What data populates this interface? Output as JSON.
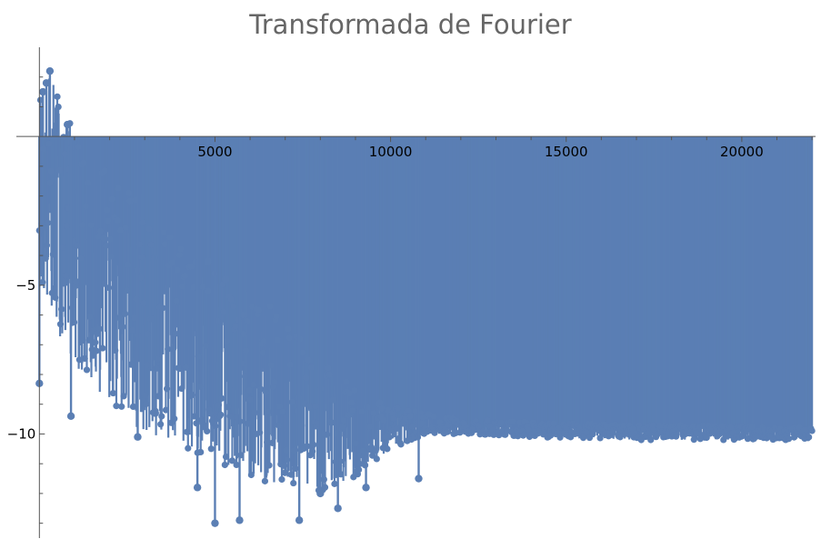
{
  "chart_data": {
    "type": "scatter",
    "subtype": "stem-plot",
    "title": "Transformada de Fourier",
    "xlabel": "",
    "ylabel": "",
    "xlim": [
      -500,
      22100
    ],
    "ylim": [
      -13.5,
      3.0
    ],
    "x_ticks": [
      5000,
      10000,
      15000,
      20000
    ],
    "x_tick_labels": [
      "5000",
      "10000",
      "15000",
      "20000"
    ],
    "y_ticks": [
      -5,
      -10
    ],
    "y_tick_labels": [
      "-5",
      "-10"
    ],
    "grid": false,
    "legend": "none",
    "series_color": "#5b7fb4",
    "envelope": {
      "x": [
        0,
        300,
        700,
        1200,
        2000,
        3000,
        4000,
        5000,
        6000,
        7000,
        8000,
        9000,
        10000,
        11000,
        12000,
        14000,
        17000,
        20000,
        22000
      ],
      "upper": [
        1.5,
        2.2,
        1.0,
        -0.5,
        -1.0,
        -2.0,
        -3.5,
        -4.5,
        -5.0,
        -6.0,
        -7.5,
        -8.5,
        -9.0,
        -9.3,
        -9.5,
        -9.6,
        -9.7,
        -9.7,
        -9.8
      ],
      "center": [
        -2.0,
        -2.5,
        -3.0,
        -3.5,
        -4.5,
        -5.5,
        -6.5,
        -7.5,
        -8.5,
        -9.2,
        -9.6,
        -9.7,
        -9.7,
        -9.8,
        -9.8,
        -9.85,
        -9.9,
        -9.9,
        -9.95
      ],
      "lower": [
        -5.0,
        -6.0,
        -7.0,
        -8.0,
        -9.0,
        -10.0,
        -10.5,
        -11.0,
        -11.5,
        -11.8,
        -12.0,
        -11.5,
        -10.5,
        -10.0,
        -10.0,
        -10.1,
        -10.2,
        -10.2,
        -10.2
      ]
    },
    "peaks": [
      {
        "x": 300,
        "y": 2.2
      },
      {
        "x": 200,
        "y": 1.8
      },
      {
        "x": 100,
        "y": 1.5
      },
      {
        "x": 800,
        "y": 0.4
      },
      {
        "x": 4800,
        "y": -4.2
      },
      {
        "x": 5300,
        "y": -4.8
      }
    ],
    "dips": [
      {
        "x": 0,
        "y": -8.3
      },
      {
        "x": 900,
        "y": -9.4
      },
      {
        "x": 2800,
        "y": -10.1
      },
      {
        "x": 3300,
        "y": -9.3
      },
      {
        "x": 4500,
        "y": -11.8
      },
      {
        "x": 5000,
        "y": -13.0
      },
      {
        "x": 5700,
        "y": -12.9
      },
      {
        "x": 7400,
        "y": -12.9
      },
      {
        "x": 8000,
        "y": -12.0
      },
      {
        "x": 8500,
        "y": -12.5
      },
      {
        "x": 9300,
        "y": -11.8
      },
      {
        "x": 10800,
        "y": -11.5
      }
    ]
  }
}
